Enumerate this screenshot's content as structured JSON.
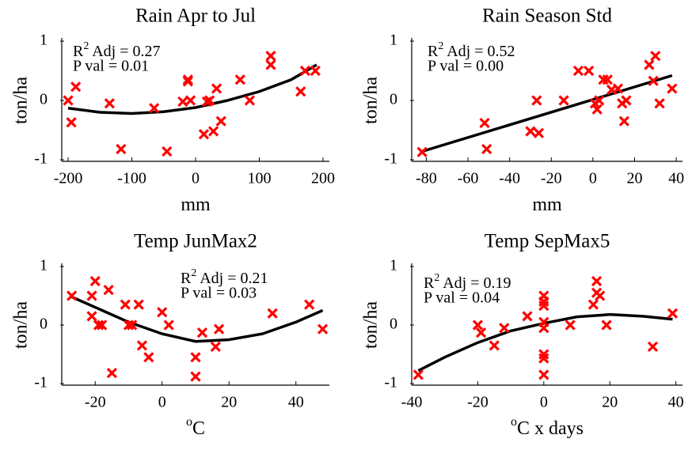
{
  "chart_data": [
    {
      "type": "scatter",
      "title": "Rain Apr to Jul",
      "x_label": "mm",
      "y_label": "ton/ha",
      "annotation": {
        "r2": [
          "R",
          "2",
          " Adj = 0.27"
        ],
        "p": "P val = 0.01"
      },
      "color": "#ff0000",
      "x": [
        -200,
        -195,
        -188,
        -135,
        -117,
        -65,
        -45,
        -20,
        -12,
        -12,
        -8,
        13,
        18,
        22,
        28,
        33,
        40,
        70,
        85,
        118,
        118,
        165,
        172,
        188
      ],
      "values": [
        0,
        -0.37,
        0.23,
        -0.05,
        -0.82,
        -0.13,
        -0.86,
        -0.02,
        0.35,
        0.32,
        0,
        -0.57,
        -0.02,
        0,
        -0.52,
        0.2,
        -0.35,
        0.35,
        0,
        0.75,
        0.6,
        0.15,
        0.5,
        0.5
      ],
      "fit": {
        "color": "#000000",
        "x": [
          -200,
          -150,
          -100,
          -50,
          0,
          50,
          100,
          150,
          190
        ],
        "values": [
          -0.13,
          -0.2,
          -0.22,
          -0.19,
          -0.12,
          0,
          0.15,
          0.35,
          0.6
        ]
      },
      "xlim": [
        -210,
        210
      ],
      "ylim": [
        -1,
        1
      ],
      "xticks": [
        -200,
        -100,
        0,
        100,
        200
      ],
      "yticks": [
        -1,
        0,
        1
      ]
    },
    {
      "type": "scatter",
      "title": "Rain Season Std",
      "x_label": "mm",
      "y_label": "ton/ha",
      "annotation": {
        "r2": [
          "R",
          "2",
          " Adj = 0.52"
        ],
        "p": "P val = 0.00"
      },
      "color": "#ff0000",
      "x": [
        -82,
        -52,
        -51,
        -30,
        -27,
        -26,
        -14,
        -7,
        -2,
        1,
        2,
        3,
        5,
        7,
        9,
        12,
        14,
        15,
        16,
        27,
        29,
        30,
        32,
        38
      ],
      "values": [
        -0.87,
        -0.38,
        -0.82,
        -0.52,
        0,
        -0.55,
        0,
        0.5,
        0.5,
        -0.05,
        -0.15,
        0,
        0.35,
        0.35,
        0.18,
        0.2,
        -0.05,
        -0.35,
        0,
        0.6,
        0.33,
        0.75,
        -0.05,
        0.2
      ],
      "fit": {
        "color": "#000000",
        "x": [
          -83,
          38
        ],
        "values": [
          -0.87,
          0.42
        ]
      },
      "xlim": [
        -87,
        43
      ],
      "ylim": [
        -1,
        1
      ],
      "xticks": [
        -80,
        -60,
        -40,
        -20,
        0,
        20,
        40
      ],
      "yticks": [
        -1,
        0,
        1
      ]
    },
    {
      "type": "scatter",
      "title": "Temp JunMax2",
      "x_label_sup": "o",
      "x_label": "C",
      "y_label": "ton/ha",
      "annotation": {
        "r2": [
          "R",
          "2",
          " Adj = 0.21"
        ],
        "p": "P val = 0.03"
      },
      "color": "#ff0000",
      "x": [
        -27,
        -21,
        -21,
        -20,
        -19,
        -18,
        -16,
        -15,
        -11,
        -10,
        -9,
        -7,
        -6,
        -4,
        0,
        2,
        10,
        10,
        12,
        16,
        17,
        33,
        44,
        48
      ],
      "values": [
        0.5,
        0.5,
        0.15,
        0.75,
        0,
        0,
        0.6,
        -0.82,
        0.35,
        0,
        0,
        0.35,
        -0.35,
        -0.55,
        0.22,
        0,
        -0.88,
        -0.55,
        -0.13,
        -0.37,
        -0.07,
        0.2,
        0.35,
        -0.07
      ],
      "fit": {
        "color": "#000000",
        "x": [
          -27,
          -10,
          0,
          10,
          20,
          30,
          40,
          48
        ],
        "values": [
          0.48,
          0.05,
          -0.15,
          -0.28,
          -0.25,
          -0.15,
          0.05,
          0.25
        ]
      },
      "xlim": [
        -30,
        50
      ],
      "ylim": [
        -1,
        1
      ],
      "xticks": [
        -20,
        0,
        20,
        40
      ],
      "yticks": [
        -1,
        0,
        1
      ]
    },
    {
      "type": "scatter",
      "title": "Temp SepMax5",
      "x_label_sup": "o",
      "x_label": "C x days",
      "y_label": "ton/ha",
      "annotation": {
        "r2": [
          "R",
          "2",
          " Adj = 0.19"
        ],
        "p": "P val = 0.04"
      },
      "color": "#ff0000",
      "x": [
        -38,
        -20,
        -19,
        -15,
        -12,
        -5,
        0,
        0,
        0,
        0,
        0,
        0,
        0,
        0,
        8,
        15,
        16,
        16,
        17,
        19,
        33,
        39
      ],
      "values": [
        -0.85,
        0,
        -0.13,
        -0.35,
        -0.05,
        0.15,
        0.5,
        0.4,
        0.33,
        0.05,
        -0.05,
        -0.5,
        -0.57,
        -0.85,
        0,
        0.35,
        0.55,
        0.75,
        0.5,
        0,
        -0.37,
        0.2
      ],
      "fit": {
        "color": "#000000",
        "x": [
          -38,
          -30,
          -20,
          -10,
          0,
          10,
          20,
          30,
          39
        ],
        "values": [
          -0.78,
          -0.55,
          -0.3,
          -0.1,
          0.03,
          0.14,
          0.18,
          0.15,
          0.1
        ]
      },
      "xlim": [
        -40,
        42
      ],
      "ylim": [
        -1,
        1
      ],
      "xticks": [
        -40,
        -20,
        0,
        20,
        40
      ],
      "yticks": [
        -1,
        0,
        1
      ]
    }
  ]
}
